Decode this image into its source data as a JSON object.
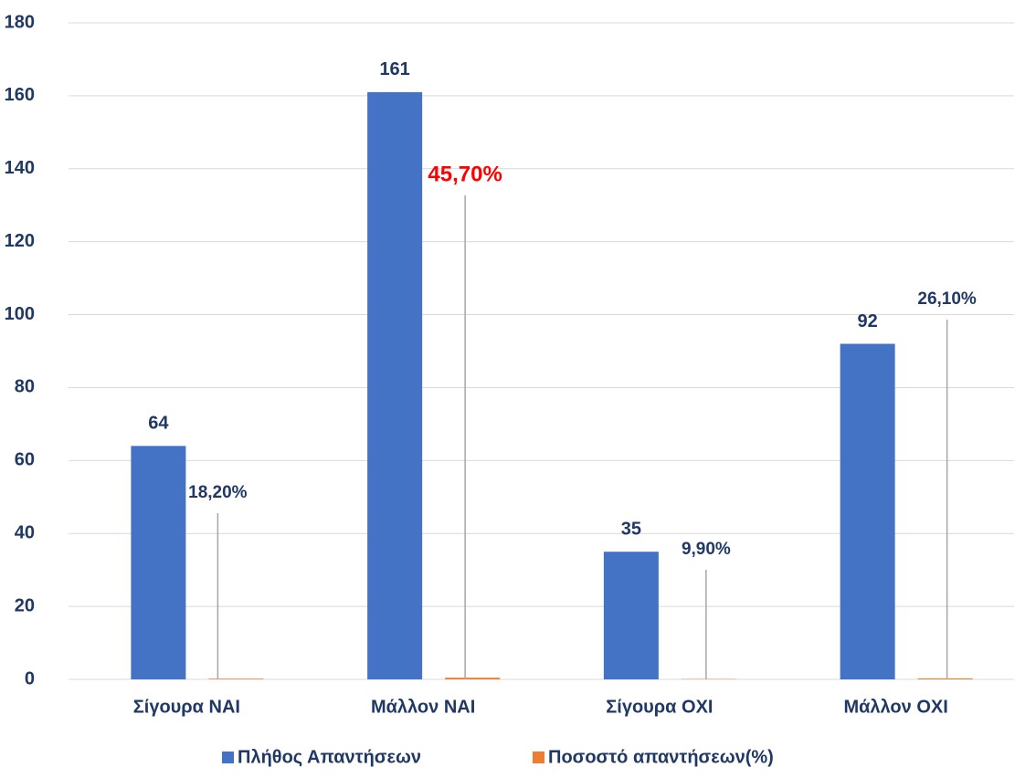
{
  "chart_data": {
    "type": "bar",
    "categories": [
      "Σίγουρα ΝΑΙ",
      "Μάλλον ΝΑΙ",
      "Σίγουρα ΟΧΙ",
      "Μάλλον ΟΧΙ"
    ],
    "series": [
      {
        "name": "Πλήθος Απαντήσεων",
        "color": "#4472c4",
        "values": [
          64,
          161,
          35,
          92
        ],
        "label_color": "#1f3864"
      },
      {
        "name": "Ποσοστό απαντήσεων(%)",
        "color": "#ed7d31",
        "values": [
          0.182,
          0.457,
          0.099,
          0.261
        ],
        "value_labels": [
          "18,20%",
          "45,70%",
          "9,90%",
          "26,10%"
        ],
        "label_colors": [
          "#1f3864",
          "#ff0000",
          "#1f3864",
          "#1f3864"
        ]
      }
    ],
    "ylim": [
      0,
      180
    ],
    "yticks": [
      0,
      20,
      40,
      60,
      80,
      100,
      120,
      140,
      160,
      180
    ],
    "grid": true,
    "legend": "bottom",
    "tick_color": "#1f3864"
  }
}
